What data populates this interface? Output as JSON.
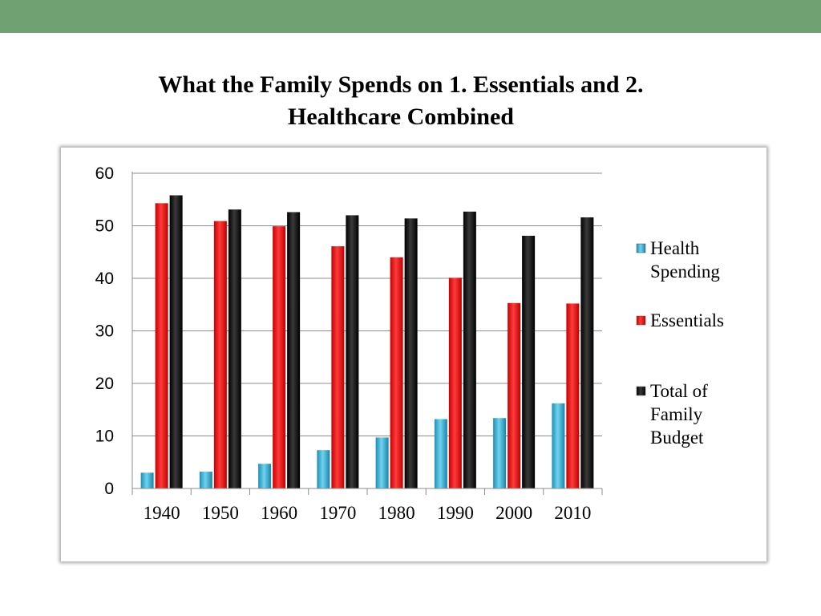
{
  "header": {
    "title_line1": "What the Family Spends on 1. Essentials and 2.",
    "title_line2": "Healthcare Combined"
  },
  "chart_data": {
    "type": "bar",
    "title": "",
    "xlabel": "",
    "ylabel": "",
    "categories": [
      "1940",
      "1950",
      "1960",
      "1970",
      "1980",
      "1990",
      "2000",
      "2010"
    ],
    "ylim": [
      0,
      60
    ],
    "yticks": [
      "0",
      "10",
      "20",
      "30",
      "40",
      "50",
      "60"
    ],
    "grid": true,
    "legend_position": "right",
    "series": [
      {
        "name": "Health Spending",
        "legend_lines": [
          "Health",
          "Spending"
        ],
        "color": "#3fb8dc",
        "values": [
          3.0,
          3.2,
          4.7,
          7.3,
          9.7,
          13.2,
          13.4,
          16.2
        ]
      },
      {
        "name": "Essentials",
        "legend_lines": [
          "Essentials"
        ],
        "color": "#ff1a1a",
        "values": [
          54.3,
          50.9,
          49.9,
          46.1,
          44.0,
          40.1,
          35.3,
          35.2
        ]
      },
      {
        "name": "Total of Family Budget",
        "legend_lines": [
          "Total of",
          "Family",
          "Budget"
        ],
        "color": "#111111",
        "values": [
          55.8,
          53.1,
          52.6,
          52.0,
          51.4,
          52.7,
          48.1,
          51.6
        ]
      }
    ]
  }
}
